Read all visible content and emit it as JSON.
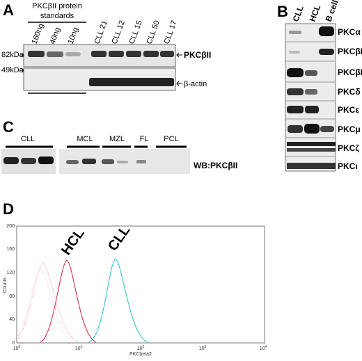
{
  "panels": {
    "a": {
      "letter": "A",
      "standards_title": [
        "PKCβII protein",
        "standards"
      ],
      "lanes": [
        "160ng",
        "40ng",
        "10ng",
        "CLL 21",
        "CLL 12",
        "CLL 15",
        "CLL 50",
        "CLL 17"
      ],
      "markers": [
        "82kDa",
        "49kDa"
      ],
      "bands": [
        "PKCβII",
        "β-actin"
      ]
    },
    "b": {
      "letter": "B",
      "columns": [
        "CLL",
        "HCL",
        "B cell"
      ],
      "rows": [
        "PKCα",
        "PKCβI",
        "PKCβII",
        "PKCδ",
        "PKCε",
        "PKCμ",
        "PKCζ",
        "PKCι"
      ]
    },
    "c": {
      "letter": "C",
      "groups": [
        "CLL",
        "MCL",
        "MZL",
        "FL",
        "PCL"
      ],
      "label": "WB:PKCβII"
    },
    "d": {
      "letter": "D",
      "y_label": "Counts",
      "x_label": "PKCbeta2",
      "yticks": [
        "0",
        "40",
        "80",
        "120",
        "160",
        "200"
      ],
      "xticks": [
        {
          "base": "10",
          "exp": "0"
        },
        {
          "base": "10",
          "exp": "1"
        },
        {
          "base": "10",
          "exp": "2"
        },
        {
          "base": "10",
          "exp": "3"
        },
        {
          "base": "10",
          "exp": "4"
        }
      ],
      "annotations": [
        "HCL",
        "CLL"
      ]
    }
  }
}
